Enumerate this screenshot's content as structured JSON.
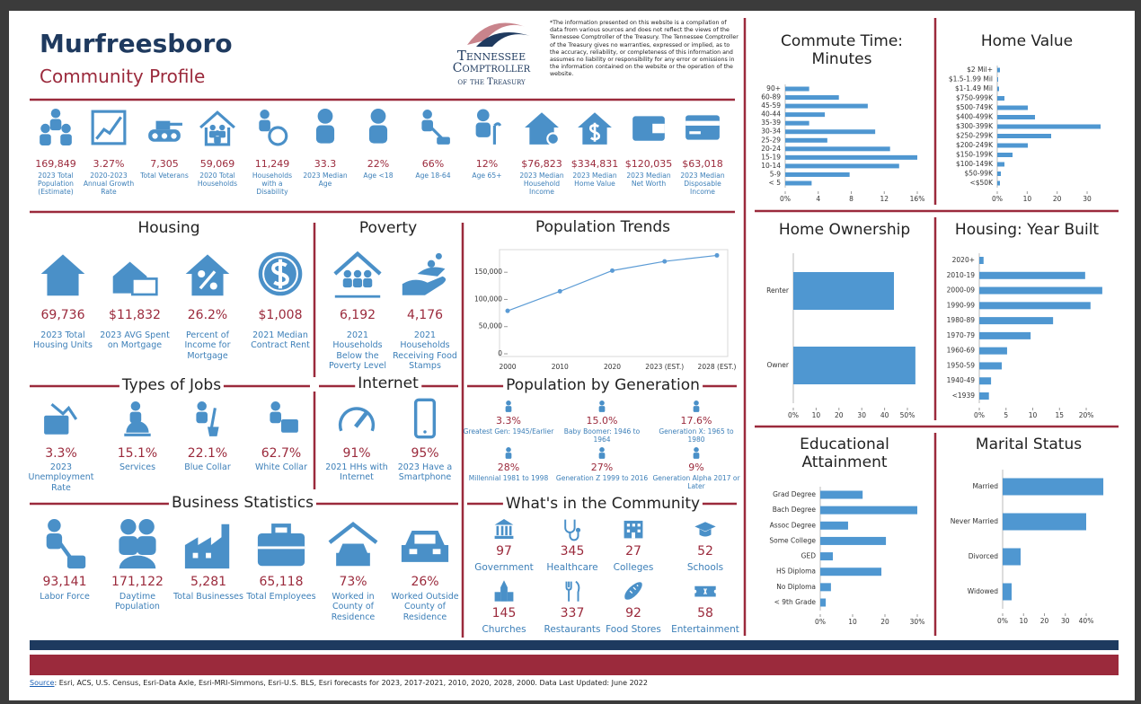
{
  "header": {
    "title": "Murfreesboro",
    "subtitle": "Community Profile",
    "logo": [
      "Tennessee",
      "Comptroller",
      "of the Treasury"
    ],
    "disclaimer": "*The information presented on this website is a compilation of data from various sources and does not reflect the views of the Tennessee Comptroller of the Treasury. The Tennessee Comptroller of the Treasury gives no warranties, expressed or implied, as to the accuracy, reliability, or completeness of this information and assumes no liability or responsibility for any error or omissions in the information contained on the website or the operation of the website."
  },
  "key_stats": [
    {
      "value": "169,849",
      "label": "2023 Total Population (Estimate)"
    },
    {
      "value": "3.27%",
      "label": "2020-2023 Annual Growth Rate"
    },
    {
      "value": "7,305",
      "label": "Total Veterans"
    },
    {
      "value": "59,069",
      "label": "2020 Total Households"
    },
    {
      "value": "11,249",
      "label": "Households with a Disability"
    },
    {
      "value": "33.3",
      "label": "2023 Median Age"
    },
    {
      "value": "22%",
      "label": "Age <18"
    },
    {
      "value": "66%",
      "label": "Age 18-64"
    },
    {
      "value": "12%",
      "label": "Age 65+"
    },
    {
      "value": "$76,823",
      "label": "2023 Median Household Income"
    },
    {
      "value": "$334,831",
      "label": "2023 Median Home Value"
    },
    {
      "value": "$120,035",
      "label": "2023 Median Net Worth"
    },
    {
      "value": "$63,018",
      "label": "2023 Median Disposable Income"
    }
  ],
  "housing": {
    "title": "Housing",
    "items": [
      {
        "value": "69,736",
        "label": "2023 Total Housing Units"
      },
      {
        "value": "$11,832",
        "label": "2023 AVG Spent on Mortgage"
      },
      {
        "value": "26.2%",
        "label": "Percent of Income for Mortgage"
      },
      {
        "value": "$1,008",
        "label": "2021 Median Contract Rent"
      }
    ]
  },
  "poverty": {
    "title": "Poverty",
    "items": [
      {
        "value": "6,192",
        "label": "2021 Households Below the Poverty Level"
      },
      {
        "value": "4,176",
        "label": "2021 Households Receiving Food Stamps"
      }
    ]
  },
  "jobs": {
    "title": "Types of Jobs",
    "items": [
      {
        "value": "3.3%",
        "label": "2023 Unemployment Rate"
      },
      {
        "value": "15.1%",
        "label": "Services"
      },
      {
        "value": "22.1%",
        "label": "Blue Collar"
      },
      {
        "value": "62.7%",
        "label": "White Collar"
      }
    ]
  },
  "internet": {
    "title": "Internet",
    "items": [
      {
        "value": "91%",
        "label": "2021 HHs with Internet"
      },
      {
        "value": "95%",
        "label": "2023 Have a Smartphone"
      }
    ]
  },
  "business": {
    "title": "Business Statistics",
    "items": [
      {
        "value": "93,141",
        "label": "Labor Force"
      },
      {
        "value": "171,122",
        "label": "Daytime Population"
      },
      {
        "value": "5,281",
        "label": "Total Businesses"
      },
      {
        "value": "65,118",
        "label": "Total Employees"
      },
      {
        "value": "73%",
        "label": "Worked in County of Residence"
      },
      {
        "value": "26%",
        "label": "Worked Outside County of Residence"
      }
    ]
  },
  "generation": {
    "title": "Population by Generation",
    "items": [
      {
        "value": "3.3%",
        "label": "Greatest Gen: 1945/Earlier"
      },
      {
        "value": "15.0%",
        "label": "Baby Boomer: 1946 to 1964"
      },
      {
        "value": "17.6%",
        "label": "Generation X: 1965 to 1980"
      },
      {
        "value": "28%",
        "label": "Millennial 1981 to 1998"
      },
      {
        "value": "27%",
        "label": "Generation Z 1999 to 2016"
      },
      {
        "value": "9%",
        "label": "Generation Alpha 2017 or Later"
      }
    ]
  },
  "community": {
    "title": "What's in the Community",
    "items": [
      {
        "value": "97",
        "label": "Government"
      },
      {
        "value": "345",
        "label": "Healthcare"
      },
      {
        "value": "27",
        "label": "Colleges"
      },
      {
        "value": "52",
        "label": "Schools"
      },
      {
        "value": "145",
        "label": "Churches"
      },
      {
        "value": "337",
        "label": "Restaurants"
      },
      {
        "value": "92",
        "label": "Food Stores"
      },
      {
        "value": "58",
        "label": "Entertainment"
      }
    ]
  },
  "footer": {
    "source_link": "Source",
    "source_text": ": Esri, ACS, U.S. Census, Esri-Data Axle, Esri-MRI-Simmons, Esri-U.S. BLS, Esri forecasts for 2023, 2017-2021, 2010, 2020, 2028, 2000. Data Last Updated: June 2022"
  },
  "chart_data": [
    {
      "type": "line",
      "title": "Population Trends",
      "color": "#5b9bd5",
      "categories": [
        "2000",
        "2010",
        "2020",
        "2023 (EST.)",
        "2028 (EST.)"
      ],
      "values": [
        79000,
        115000,
        153000,
        170000,
        181000
      ],
      "ylim": [
        0,
        185000
      ],
      "yticks": [
        0,
        {
          "value": 50000,
          "label": "50,000"
        },
        {
          "value": 100000,
          "label": "100,000"
        },
        {
          "value": 150000,
          "label": "150,000"
        }
      ]
    },
    {
      "type": "bar",
      "orientation": "horizontal",
      "title": "Commute Time: Minutes",
      "color": "#4f97d1",
      "categories": [
        "90+",
        "60-89",
        "45-59",
        "40-44",
        "35-39",
        "30-34",
        "25-29",
        "20-24",
        "15-19",
        "10-14",
        "5-9",
        "< 5"
      ],
      "values": [
        2.9,
        6.5,
        10.0,
        4.8,
        2.9,
        10.9,
        5.1,
        12.7,
        16.0,
        13.8,
        7.8,
        3.2
      ],
      "xlim": [
        0,
        16
      ],
      "xticks": [
        {
          "value": 0,
          "label": "0%"
        },
        4,
        8,
        12,
        {
          "value": 16,
          "label": "16%"
        }
      ]
    },
    {
      "type": "bar",
      "orientation": "horizontal",
      "title": "Home Value",
      "color": "#4f97d1",
      "categories": [
        "$2 Mil+",
        "$1.5-1.99 Mil",
        "$1-1.49 Mil",
        "$750-999K",
        "$500-749K",
        "$400-499K",
        "$300-399K",
        "$250-299K",
        "$200-249K",
        "$150-199K",
        "$100-149K",
        "$50-99K",
        "<$50K"
      ],
      "values": [
        0.9,
        0.3,
        0.6,
        2.4,
        10.2,
        12.6,
        34.5,
        18.0,
        10.2,
        5.1,
        2.4,
        1.2,
        0.9
      ],
      "xlim": [
        0,
        35
      ],
      "xticks": [
        {
          "value": 0,
          "label": "0%"
        },
        10,
        20,
        30
      ]
    },
    {
      "type": "bar",
      "orientation": "horizontal",
      "title": "Home Ownership",
      "color": "#4f97d1",
      "categories": [
        "Renter",
        "Owner"
      ],
      "values": [
        44.1,
        53.5
      ],
      "xlim": [
        0,
        55
      ],
      "xticks": [
        {
          "value": 0,
          "label": "0%"
        },
        10,
        20,
        30,
        40,
        {
          "value": 50,
          "label": "50%"
        }
      ]
    },
    {
      "type": "bar",
      "orientation": "horizontal",
      "title": "Housing: Year Built",
      "color": "#4f97d1",
      "categories": [
        "2020+",
        "2010-19",
        "2000-09",
        "1990-99",
        "1980-89",
        "1970-79",
        "1960-69",
        "1950-59",
        "1940-49",
        "<1939"
      ],
      "values": [
        0.8,
        19.8,
        23.0,
        20.8,
        13.8,
        9.6,
        5.2,
        4.2,
        2.2,
        1.8
      ],
      "xlim": [
        0,
        23
      ],
      "xticks": [
        {
          "value": 0,
          "label": "0%"
        },
        5,
        10,
        15,
        {
          "value": 20,
          "label": "20%"
        }
      ]
    },
    {
      "type": "bar",
      "orientation": "horizontal",
      "title": "Educational Attainment",
      "color": "#4f97d1",
      "categories": [
        "Grad Degree",
        "Bach Degree",
        "Assoc Degree",
        "Some College",
        "GED",
        "HS Diploma",
        "No Diploma",
        "< 9th Grade"
      ],
      "values": [
        13.1,
        30.0,
        8.6,
        20.3,
        3.9,
        18.9,
        3.3,
        1.7
      ],
      "xlim": [
        0,
        30
      ],
      "xticks": [
        {
          "value": 0,
          "label": "0%"
        },
        10,
        20,
        {
          "value": 30,
          "label": "30%"
        }
      ]
    },
    {
      "type": "bar",
      "orientation": "horizontal",
      "title": "Marital Status",
      "color": "#4f97d1",
      "categories": [
        "Married",
        "Never Married",
        "Divorced",
        "Widowed"
      ],
      "values": [
        48.2,
        40.0,
        8.6,
        4.3
      ],
      "xlim": [
        0,
        48
      ],
      "xticks": [
        {
          "value": 0,
          "label": "0%"
        },
        10,
        20,
        30,
        {
          "value": 40,
          "label": "40%"
        }
      ]
    }
  ]
}
